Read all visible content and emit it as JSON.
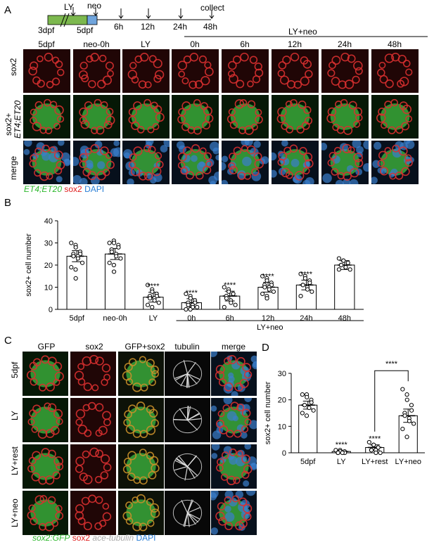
{
  "panel_labels": {
    "a": "A",
    "b": "B",
    "c": "C",
    "d": "D"
  },
  "timeline": {
    "start": "3dpf",
    "mid": "5dpf",
    "ly": "LY",
    "neo": "neo",
    "collect": "collect",
    "points": [
      "6h",
      "12h",
      "24h",
      "48h"
    ],
    "treatment": "LY+neo"
  },
  "panel_a": {
    "columns": [
      "5dpf",
      "neo-0h",
      "LY",
      "0h",
      "6h",
      "12h",
      "24h",
      "48h"
    ],
    "rows": [
      "sox2",
      "sox2+",
      "ET4;ET20",
      "merge"
    ],
    "legend": {
      "green": "ET4;ET20",
      "red": "sox2",
      "blue": "DAPI"
    },
    "colors": {
      "green": "#2db82d",
      "red": "#e02020",
      "blue": "#2a7fd6"
    }
  },
  "panel_c": {
    "columns": [
      "GFP",
      "sox2",
      "GFP+sox2",
      "tubulin",
      "merge"
    ],
    "rows": [
      "5dpf",
      "LY",
      "LY+rest",
      "LY+neo"
    ],
    "legend": {
      "gfp": "sox2:GFP",
      "sox2": "sox2",
      "tub": "ace-tubulin",
      "dapi": "DAPI"
    }
  },
  "chart_data": [
    {
      "type": "bar",
      "ylabel": "sox2+ cell number",
      "ylim": [
        0,
        40
      ],
      "yticks": [
        0,
        10,
        20,
        30,
        40
      ],
      "categories": [
        "5dpf",
        "neo-0h",
        "LY",
        "0h",
        "6h",
        "12h",
        "24h",
        "48h"
      ],
      "values": [
        24,
        25,
        5.5,
        3,
        6,
        10,
        11,
        20
      ],
      "errors": [
        2.5,
        2.5,
        2.2,
        1.8,
        2.2,
        2.2,
        2.2,
        2
      ],
      "annotations": [
        "",
        "",
        "****",
        "****",
        "****",
        "****",
        "****",
        ""
      ],
      "group_label": "LY+neo",
      "points": [
        [
          30,
          29,
          28,
          26,
          25,
          25,
          24,
          24,
          23,
          21,
          19,
          18,
          14
        ],
        [
          30,
          31,
          30,
          29,
          28,
          27,
          26,
          25,
          24,
          23,
          21,
          20,
          17
        ],
        [
          11,
          9,
          8,
          7,
          6,
          6,
          5,
          5,
          4,
          3,
          2,
          1
        ],
        [
          7,
          6,
          5,
          4,
          3,
          3,
          2,
          2,
          1,
          1,
          0,
          0
        ],
        [
          10,
          9,
          8,
          7,
          7,
          6,
          5,
          4,
          3,
          2,
          1
        ],
        [
          15,
          14,
          13,
          12,
          11,
          11,
          10,
          10,
          9,
          8,
          7,
          6,
          5
        ],
        [
          16,
          15,
          14,
          13,
          12,
          11,
          11,
          10,
          9,
          8,
          6
        ],
        [
          23,
          22,
          22,
          21,
          21,
          20,
          20,
          19,
          19,
          18,
          18
        ]
      ]
    },
    {
      "type": "bar",
      "ylabel": "sox2+ cell number",
      "ylim": [
        0,
        30
      ],
      "yticks": [
        0,
        10,
        20,
        30
      ],
      "categories": [
        "5dpf",
        "LY",
        "LY+rest",
        "LY+neo"
      ],
      "values": [
        18,
        0.5,
        2,
        14
      ],
      "errors": [
        1.5,
        0.3,
        1,
        2.5
      ],
      "annotations": [
        "",
        "****",
        "****",
        ""
      ],
      "bracket_label": "****",
      "points": [
        [
          22,
          22,
          21,
          20,
          19,
          18,
          18,
          17,
          17,
          16,
          15,
          14
        ],
        [
          1,
          1,
          0.5,
          0.5,
          0,
          0,
          0,
          0
        ],
        [
          4,
          3,
          3,
          2,
          2,
          1,
          1,
          1,
          0,
          0
        ],
        [
          24,
          22,
          20,
          18,
          16,
          15,
          14,
          13,
          12,
          11,
          9,
          6
        ]
      ]
    }
  ]
}
